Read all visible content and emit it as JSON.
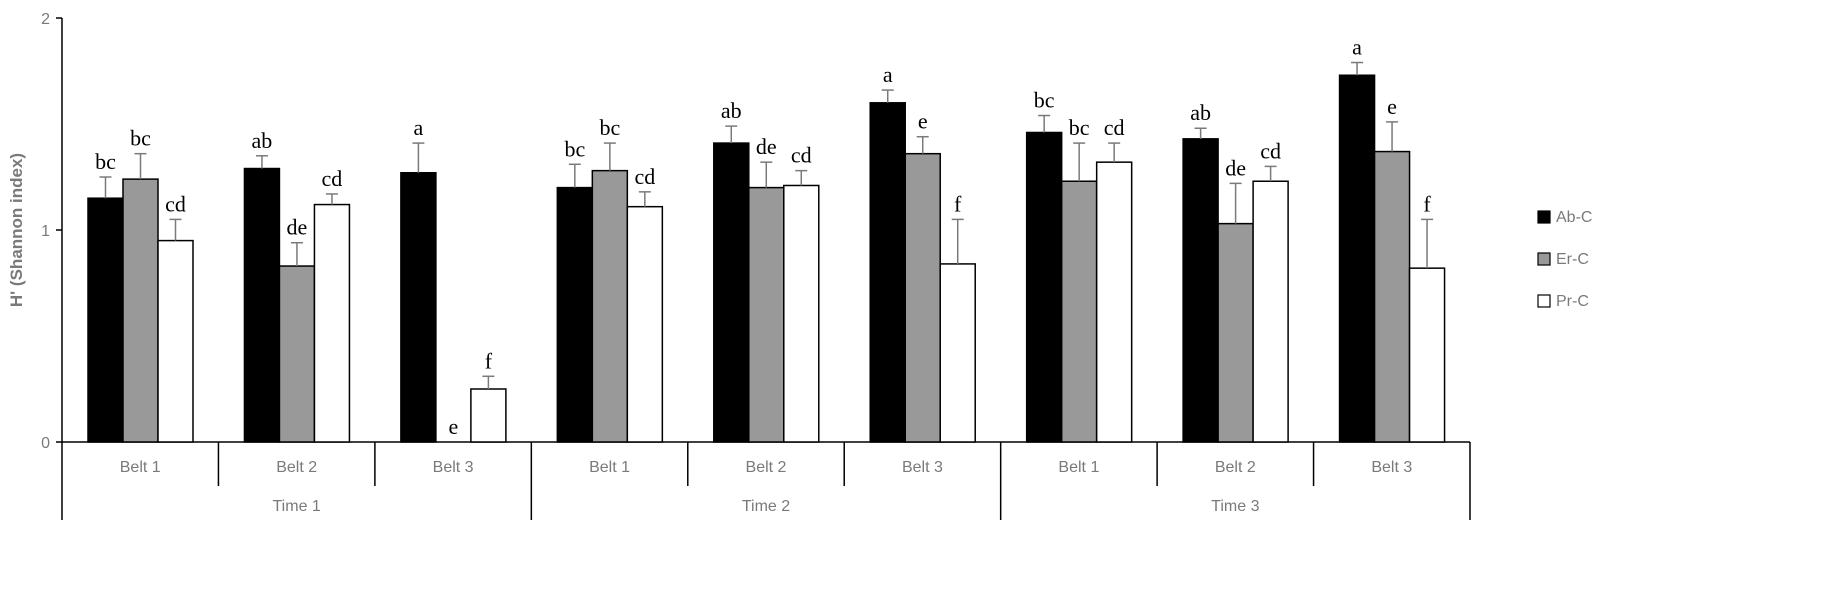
{
  "chart_data": {
    "type": "bar",
    "ylabel": "H' (Shannon index)",
    "ylim": [
      0,
      2
    ],
    "yticks": [
      0,
      1,
      2
    ],
    "groups": [
      {
        "name": "Time 1",
        "categories": [
          "Belt 1",
          "Belt 2",
          "Belt 3"
        ]
      },
      {
        "name": "Time 2",
        "categories": [
          "Belt 1",
          "Belt 2",
          "Belt 3"
        ]
      },
      {
        "name": "Time 3",
        "categories": [
          "Belt 1",
          "Belt 2",
          "Belt 3"
        ]
      }
    ],
    "series": [
      {
        "name": "Ab-C",
        "color": "#000000",
        "values": [
          1.15,
          1.29,
          1.27,
          1.2,
          1.41,
          1.6,
          1.46,
          1.43,
          1.73
        ],
        "errors": [
          0.1,
          0.06,
          0.14,
          0.11,
          0.08,
          0.06,
          0.08,
          0.05,
          0.06
        ],
        "labels": [
          "bc",
          "ab",
          "a",
          "bc",
          "ab",
          "a",
          "bc",
          "ab",
          "a"
        ]
      },
      {
        "name": "Er-C",
        "color": "#999999",
        "values": [
          1.24,
          0.83,
          0.0,
          1.28,
          1.2,
          1.36,
          1.23,
          1.03,
          1.37
        ],
        "errors": [
          0.12,
          0.11,
          0.0,
          0.13,
          0.12,
          0.08,
          0.18,
          0.19,
          0.14
        ],
        "labels": [
          "bc",
          "de",
          "e",
          "bc",
          "de",
          "e",
          "bc",
          "de",
          "e"
        ]
      },
      {
        "name": "Pr-C",
        "color": "#ffffff",
        "values": [
          0.95,
          1.12,
          0.25,
          1.11,
          1.21,
          0.84,
          1.32,
          1.23,
          0.82
        ],
        "errors": [
          0.1,
          0.05,
          0.06,
          0.07,
          0.07,
          0.21,
          0.09,
          0.07,
          0.23
        ],
        "labels": [
          "cd",
          "cd",
          "f",
          "cd",
          "cd",
          "f",
          "cd",
          "cd",
          "f"
        ]
      }
    ],
    "legend": {
      "position": "right",
      "entries": [
        "Ab-C",
        "Er-C",
        "Pr-C"
      ]
    },
    "grid": false
  }
}
